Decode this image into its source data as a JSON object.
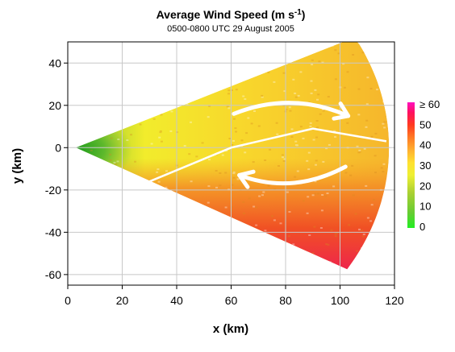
{
  "chart_data": {
    "type": "heatmap",
    "title": "Average Wind Speed (m s",
    "title_superscript": "-1",
    "title_close": ")",
    "subtitle": "0500-0800 UTC 29 August 2005",
    "xlabel": "x (km)",
    "ylabel": "y (km)",
    "xlim": [
      0,
      120
    ],
    "ylim": [
      -65,
      50
    ],
    "x_ticks": [
      "0",
      "20",
      "40",
      "60",
      "80",
      "100",
      "120"
    ],
    "y_ticks": [
      "40",
      "20",
      "0",
      "-20",
      "-40",
      "-60"
    ],
    "grid": true,
    "domain": {
      "shape": "radar-sector",
      "origin": [
        3,
        0
      ],
      "range_km": 115,
      "azimuth_deg": [
        -30,
        27
      ],
      "clipped_at_top": 50
    },
    "colorbar": {
      "ticks": [
        "≥ 60",
        "50",
        "40",
        "30",
        "20",
        "10",
        "0"
      ],
      "range": [
        0,
        60
      ],
      "colors": [
        "#22ee22",
        "#66cc33",
        "#aad033",
        "#eef033",
        "#ffe030",
        "#ffb030",
        "#ff7a25",
        "#ff3a20",
        "#ff1060",
        "#ff10c0"
      ]
    },
    "annotations": [
      {
        "type": "arrow",
        "direction": "east",
        "from": [
          61,
          16
        ],
        "to": [
          103,
          15
        ]
      },
      {
        "type": "arrow",
        "direction": "west",
        "from": [
          102,
          -9
        ],
        "to": [
          63,
          -13
        ]
      },
      {
        "type": "line",
        "label": "",
        "points": [
          [
            30,
            -16
          ],
          [
            60,
            0
          ],
          [
            90,
            9
          ],
          [
            117,
            3
          ]
        ]
      }
    ]
  }
}
